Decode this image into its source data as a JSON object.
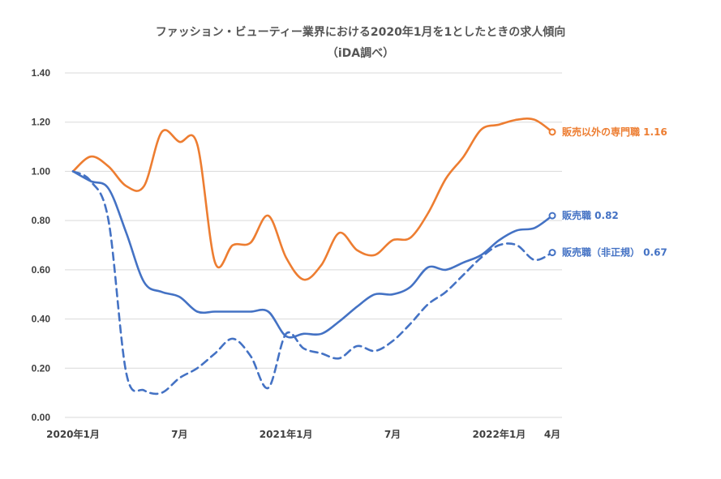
{
  "chart_data": {
    "type": "line",
    "title": "ファッション・ビューティー業界における2020年1月を1としたときの求人傾向",
    "subtitle": "（iDA調べ）",
    "xlabel": "",
    "ylabel": "",
    "ylim": [
      0,
      1.4
    ],
    "yticks": [
      "0.00",
      "0.20",
      "0.40",
      "0.60",
      "0.80",
      "1.00",
      "1.20",
      "1.40"
    ],
    "grid": true,
    "legend": "none",
    "x": [
      "2020-01",
      "2020-02",
      "2020-03",
      "2020-04",
      "2020-05",
      "2020-06",
      "2020-07",
      "2020-08",
      "2020-09",
      "2020-10",
      "2020-11",
      "2020-12",
      "2021-01",
      "2021-02",
      "2021-03",
      "2021-04",
      "2021-05",
      "2021-06",
      "2021-07",
      "2021-08",
      "2021-09",
      "2021-10",
      "2021-11",
      "2021-12",
      "2022-01",
      "2022-02",
      "2022-03",
      "2022-04"
    ],
    "xticks": [
      {
        "at": "2020-01",
        "label": "2020年1月"
      },
      {
        "at": "2020-07",
        "label": "7月"
      },
      {
        "at": "2021-01",
        "label": "2021年1月"
      },
      {
        "at": "2021-07",
        "label": "7月"
      },
      {
        "at": "2022-01",
        "label": "2022年1月"
      },
      {
        "at": "2022-04",
        "label": "4月"
      }
    ],
    "series": [
      {
        "name": "販売以外の専門職",
        "end_label": "販売以外の専門職 1.16",
        "color": "#ED7D31",
        "dash": false,
        "values": [
          1.0,
          1.06,
          1.02,
          0.94,
          0.94,
          1.16,
          1.12,
          1.11,
          0.63,
          0.7,
          0.71,
          0.82,
          0.65,
          0.56,
          0.62,
          0.75,
          0.68,
          0.66,
          0.72,
          0.73,
          0.83,
          0.97,
          1.06,
          1.17,
          1.19,
          1.21,
          1.21,
          1.16
        ]
      },
      {
        "name": "販売職",
        "end_label": "販売職 0.82",
        "color": "#4472C4",
        "dash": false,
        "values": [
          1.0,
          0.96,
          0.93,
          0.75,
          0.55,
          0.51,
          0.49,
          0.43,
          0.43,
          0.43,
          0.43,
          0.43,
          0.33,
          0.34,
          0.34,
          0.39,
          0.45,
          0.5,
          0.5,
          0.53,
          0.61,
          0.6,
          0.63,
          0.66,
          0.72,
          0.76,
          0.77,
          0.82
        ]
      },
      {
        "name": "販売職（非正規）",
        "end_label": "販売職（非正規） 0.67",
        "color": "#4472C4",
        "dash": true,
        "values": [
          1.0,
          0.96,
          0.8,
          0.18,
          0.11,
          0.1,
          0.16,
          0.2,
          0.26,
          0.32,
          0.25,
          0.12,
          0.34,
          0.28,
          0.26,
          0.24,
          0.29,
          0.27,
          0.31,
          0.38,
          0.46,
          0.51,
          0.58,
          0.65,
          0.7,
          0.7,
          0.64,
          0.67
        ]
      }
    ]
  }
}
